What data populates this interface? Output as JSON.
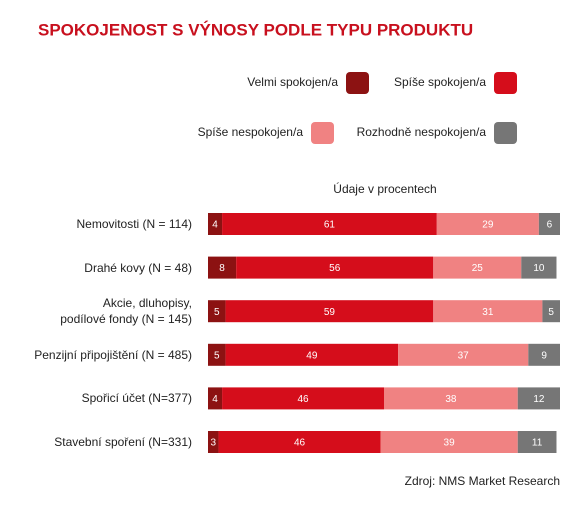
{
  "chart_data": {
    "type": "stacked-bar-horizontal",
    "title": "SPOKOJENOST S VÝNOSY PODLE TYPU PRODUKTU",
    "subtitle": "Údaje v procentech",
    "source": "Zdroj: NMS Market Research",
    "categories": [
      "Nemovitosti (N = 114)",
      "Drahé kovy (N = 48)",
      "Akcie, dluhopisy,\npodílové fondy (N = 145)",
      "Penzijní připojištění (N = 485)",
      "Spořicí účet (N=377)",
      "Stavební spoření (N=331)"
    ],
    "xlim": [
      0,
      100
    ],
    "series": [
      {
        "name": "Velmi spokojen/a",
        "color": "#8c1212",
        "values": [
          4,
          8,
          5,
          5,
          4,
          3
        ]
      },
      {
        "name": "Spíše spokojen/a",
        "color": "#d50d1b",
        "values": [
          61,
          56,
          59,
          49,
          46,
          46
        ]
      },
      {
        "name": "Spíše nespokojen/a",
        "color": "#f08282",
        "values": [
          29,
          25,
          31,
          37,
          38,
          39
        ]
      },
      {
        "name": "Rozhodně nespokojen/a",
        "color": "#767676",
        "values": [
          6,
          10,
          5,
          9,
          12,
          11
        ]
      }
    ]
  }
}
